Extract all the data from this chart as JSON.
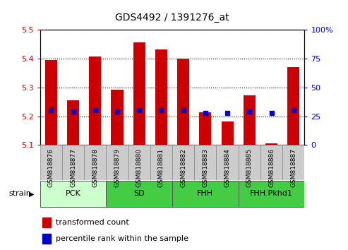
{
  "title": "GDS4492 / 1391276_at",
  "samples": [
    "GSM818876",
    "GSM818877",
    "GSM818878",
    "GSM818879",
    "GSM818880",
    "GSM818881",
    "GSM818882",
    "GSM818883",
    "GSM818884",
    "GSM818885",
    "GSM818886",
    "GSM818887"
  ],
  "transformed_count": [
    5.395,
    5.255,
    5.408,
    5.293,
    5.457,
    5.432,
    5.4,
    5.215,
    5.183,
    5.273,
    5.105,
    5.37
  ],
  "percentile_rank": [
    30,
    29,
    30,
    29,
    30,
    30,
    30,
    28,
    28,
    29,
    28,
    30
  ],
  "y_min": 5.1,
  "y_max": 5.5,
  "y_ticks": [
    5.1,
    5.2,
    5.3,
    5.4,
    5.5
  ],
  "right_y_ticks": [
    0,
    25,
    50,
    75,
    100
  ],
  "bar_color": "#CC0000",
  "dot_color": "#0000CC",
  "groups": [
    {
      "label": "PCK",
      "start": 0,
      "end": 2,
      "color": "#ccffcc"
    },
    {
      "label": "SD",
      "start": 3,
      "end": 5,
      "color": "#44cc44"
    },
    {
      "label": "FHH",
      "start": 6,
      "end": 8,
      "color": "#44cc44"
    },
    {
      "label": "FHH.Pkhd1",
      "start": 9,
      "end": 11,
      "color": "#44cc44"
    }
  ],
  "left_tick_color": "#cc0000",
  "right_tick_color": "#0000cc",
  "tick_area_color": "#cccccc",
  "strain_label": "strain",
  "legend_items": [
    "transformed count",
    "percentile rank within the sample"
  ]
}
